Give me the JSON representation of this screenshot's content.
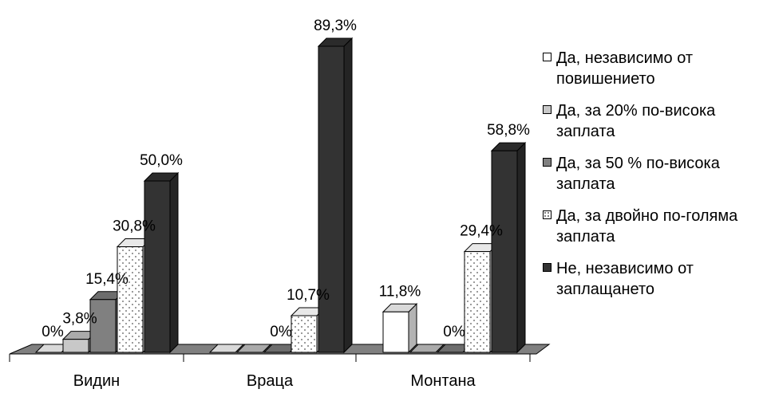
{
  "chart_data": {
    "type": "bar",
    "categories": [
      "Видин",
      "Враца",
      "Монтана"
    ],
    "ylim": [
      0,
      100
    ],
    "series": [
      {
        "name": "Да, независимо от повишението",
        "values": [
          0,
          0,
          11.8
        ],
        "labels": [
          "0%",
          "",
          "11,8%"
        ],
        "color": "#ffffff",
        "pattern": "solid"
      },
      {
        "name": "Да, за 20% по-висока заплата",
        "values": [
          3.8,
          0,
          0
        ],
        "labels": [
          "3,8%",
          "",
          ""
        ],
        "color": "#c8c8c8",
        "pattern": "solid"
      },
      {
        "name": "Да, за 50 % по-висока заплата",
        "values": [
          15.4,
          0,
          0
        ],
        "labels": [
          "15,4%",
          "0%",
          "0%"
        ],
        "color": "#808080",
        "pattern": "solid"
      },
      {
        "name": "Да, за двойно по-голяма заплата",
        "values": [
          30.8,
          10.7,
          29.4
        ],
        "labels": [
          "30,8%",
          "10,7%",
          "29,4%"
        ],
        "color": "#ffffff",
        "pattern": "dots"
      },
      {
        "name": "Не, независимо от заплащането",
        "values": [
          50.0,
          89.3,
          58.8
        ],
        "labels": [
          "50,0%",
          "89,3%",
          "58,8%"
        ],
        "color": "#333333",
        "pattern": "solid"
      }
    ],
    "legend_position": "right",
    "grid": false
  },
  "legend": {
    "items": [
      {
        "text": "Да, независимо от повишението",
        "swatch": "white"
      },
      {
        "text": "Да, за 20% по-висока заплата",
        "swatch": "lightgray"
      },
      {
        "text": "Да, за 50 % по-висока заплата",
        "swatch": "gray"
      },
      {
        "text": "Да, за двойно по-голяма заплата",
        "swatch": "dots"
      },
      {
        "text": "Не, независимо от заплащането",
        "swatch": "dark"
      }
    ]
  }
}
